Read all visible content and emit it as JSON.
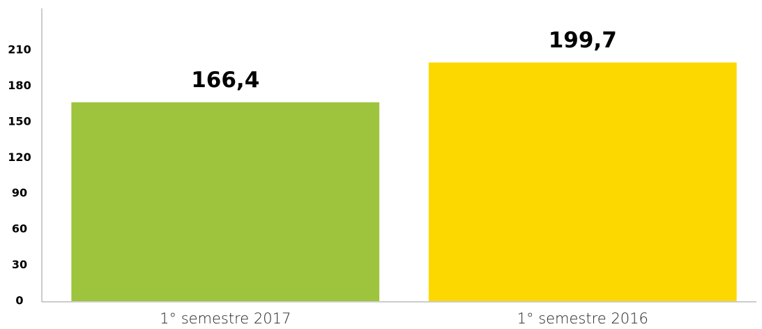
{
  "chart_data": {
    "type": "bar",
    "categories": [
      "1° semestre 2017",
      "1° semestre 2016"
    ],
    "values": [
      166.4,
      199.7
    ],
    "value_labels": [
      "166,4",
      "199,7"
    ],
    "colors": [
      "#9dc43c",
      "#fdd800"
    ],
    "ylim": [
      0,
      245
    ],
    "yticks": [
      0,
      30,
      60,
      90,
      120,
      150,
      180,
      210
    ]
  }
}
